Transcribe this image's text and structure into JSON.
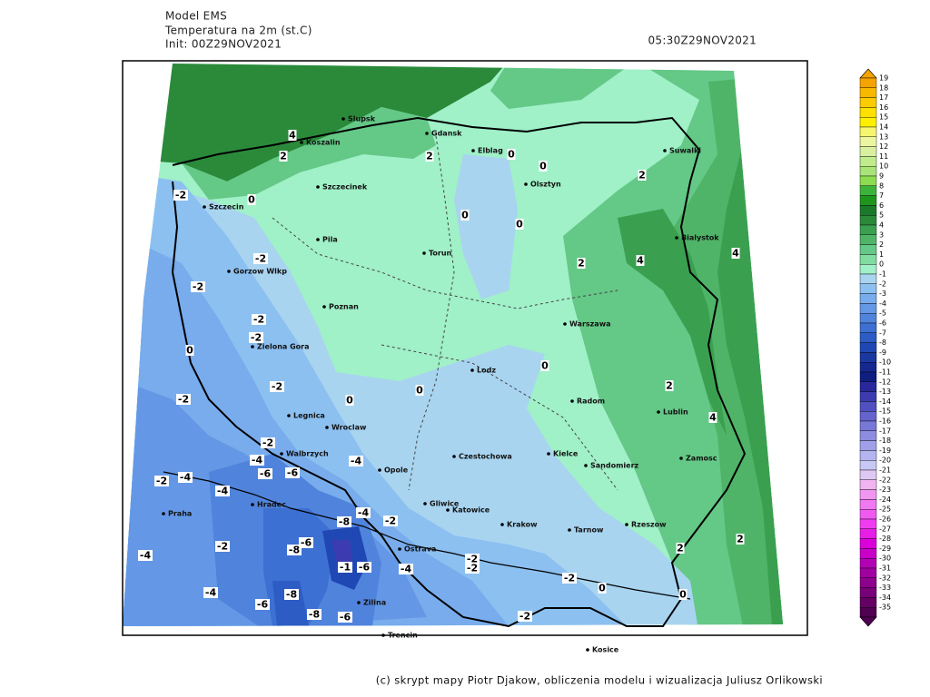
{
  "header": {
    "model": "Model EMS",
    "parameter": "Temperatura na 2m (st.C)",
    "init": "Init: 00Z29NOV2021",
    "valid": "05:30Z29NOV2021"
  },
  "footer": "(c) skrypt mapy Piotr Djakow, obliczenia modelu i wizualizacja Juliusz Orlikowski",
  "cities": [
    "Slupsk",
    "Koszalin",
    "Gdansk",
    "Elblag",
    "Olsztyn",
    "Suwalki",
    "Szczecinek",
    "Szczecin",
    "Pila",
    "Torun",
    "Bialystok",
    "Gorzow Wlkp",
    "Poznan",
    "Warszawa",
    "Zielona Gora",
    "Lodz",
    "Legnica",
    "Wroclaw",
    "Radom",
    "Lublin",
    "Walbrzych",
    "Opole",
    "Czestochowa",
    "Kielce",
    "Sandomierz",
    "Zamosc",
    "Hradec",
    "Gliwice",
    "Katowice",
    "Krakow",
    "Tarnow",
    "Rzeszow",
    "Praha",
    "Ostrava",
    "Zilina",
    "Trencin",
    "Kosice"
  ],
  "contour_labels": [
    4,
    2,
    2,
    0,
    0,
    0,
    -2,
    2,
    0,
    0,
    2,
    4,
    4,
    -2,
    -2,
    -2,
    -2,
    0,
    0,
    0,
    0,
    -2,
    -2,
    2,
    4,
    -2,
    -4,
    -4,
    -6,
    -6,
    -2,
    -4,
    -4,
    -8,
    -4,
    -2,
    -4,
    -2,
    -6,
    -8,
    -1,
    -6,
    -4,
    -2,
    -2,
    -2,
    2,
    2,
    0,
    0,
    -4,
    -6,
    -8,
    -8,
    -6,
    -2
  ],
  "legend": {
    "levels": [
      {
        "label": 19,
        "color": "#f5a300"
      },
      {
        "label": 18,
        "color": "#f8b800"
      },
      {
        "label": 17,
        "color": "#fccc00"
      },
      {
        "label": 16,
        "color": "#ffe000"
      },
      {
        "label": 15,
        "color": "#fff000"
      },
      {
        "label": 14,
        "color": "#f5f56e"
      },
      {
        "label": 13,
        "color": "#ecf5a0"
      },
      {
        "label": 12,
        "color": "#d8f0a0"
      },
      {
        "label": 11,
        "color": "#c0ec8c"
      },
      {
        "label": 10,
        "color": "#a8e478"
      },
      {
        "label": 9,
        "color": "#8cdc50"
      },
      {
        "label": 8,
        "color": "#3cb43c"
      },
      {
        "label": 7,
        "color": "#1e961e"
      },
      {
        "label": 6,
        "color": "#1a7a2a"
      },
      {
        "label": 5,
        "color": "#2a8a3a"
      },
      {
        "label": 4,
        "color": "#3aa050"
      },
      {
        "label": 3,
        "color": "#50b468"
      },
      {
        "label": 2,
        "color": "#64c887"
      },
      {
        "label": 1,
        "color": "#80dca0"
      },
      {
        "label": 0,
        "color": "#a0f0c8"
      },
      {
        "label": -1,
        "color": "#a8d4f0"
      },
      {
        "label": -2,
        "color": "#8cc0f0"
      },
      {
        "label": -3,
        "color": "#78acec"
      },
      {
        "label": -4,
        "color": "#6498e6"
      },
      {
        "label": -5,
        "color": "#5084dc"
      },
      {
        "label": -6,
        "color": "#3c70d2"
      },
      {
        "label": -7,
        "color": "#2c5cc4"
      },
      {
        "label": -8,
        "color": "#2048b4"
      },
      {
        "label": -9,
        "color": "#1a38a0"
      },
      {
        "label": -10,
        "color": "#142890"
      },
      {
        "label": -11,
        "color": "#101e80"
      },
      {
        "label": -12,
        "color": "#28289c"
      },
      {
        "label": -13,
        "color": "#3c3cb0"
      },
      {
        "label": -14,
        "color": "#5050c0"
      },
      {
        "label": -15,
        "color": "#6464cc"
      },
      {
        "label": -16,
        "color": "#7878d8"
      },
      {
        "label": -17,
        "color": "#8c8ce0"
      },
      {
        "label": -18,
        "color": "#a0a0ea"
      },
      {
        "label": -19,
        "color": "#b4b4f0"
      },
      {
        "label": -20,
        "color": "#c8c8f5"
      },
      {
        "label": -21,
        "color": "#e0c8f5"
      },
      {
        "label": -22,
        "color": "#f0b4f0"
      },
      {
        "label": -23,
        "color": "#f096f0"
      },
      {
        "label": -24,
        "color": "#f078f0"
      },
      {
        "label": -25,
        "color": "#f05af0"
      },
      {
        "label": -26,
        "color": "#f03cf0"
      },
      {
        "label": -27,
        "color": "#e61ee6"
      },
      {
        "label": -28,
        "color": "#dc00dc"
      },
      {
        "label": -29,
        "color": "#c800c8"
      },
      {
        "label": -30,
        "color": "#b400b4"
      },
      {
        "label": -31,
        "color": "#a000a0"
      },
      {
        "label": -32,
        "color": "#8c008c"
      },
      {
        "label": -33,
        "color": "#780078"
      },
      {
        "label": -34,
        "color": "#640064"
      },
      {
        "label": -35,
        "color": "#500050"
      }
    ]
  }
}
